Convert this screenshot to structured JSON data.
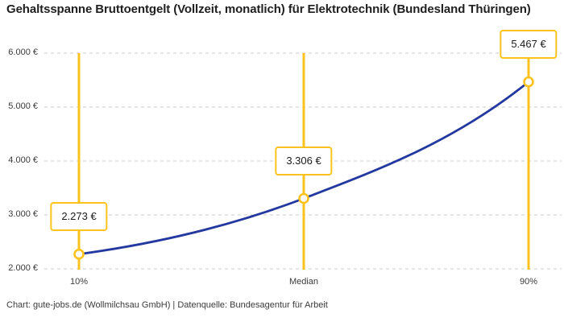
{
  "chart_data": {
    "type": "line",
    "title": "Gehaltsspanne Bruttoentgelt (Vollzeit, monatlich) für Elektrotechnik (Bundesland Thüringen)",
    "categories": [
      "10%",
      "Median",
      "90%"
    ],
    "values": [
      2273,
      3306,
      5467
    ],
    "value_labels": [
      "2.273 €",
      "3.306 €",
      "5.467 €"
    ],
    "ylim": [
      2000,
      6000
    ],
    "yticks": [
      2000,
      3000,
      4000,
      5000,
      6000
    ],
    "ytick_labels": [
      "2.000 €",
      "3.000 €",
      "4.000 €",
      "5.000 €",
      "6.000 €"
    ],
    "xlabel": "",
    "ylabel": "",
    "grid": "horizontal-dashed",
    "legend": "none",
    "colors": {
      "line": "#24399F",
      "annotation": "#FCC31E",
      "marker_fill": "#FFFFFF",
      "grid": "#CBCBCB",
      "title_text": "#1F1F1F",
      "axis_text": "#3A3A3A",
      "label_text": "#1A1A1A",
      "background": "#FFFFFF"
    },
    "footer": "Chart: gute-jobs.de (Wollmilchsau GmbH) | Datenquelle: Bundesagentur für Arbeit"
  }
}
